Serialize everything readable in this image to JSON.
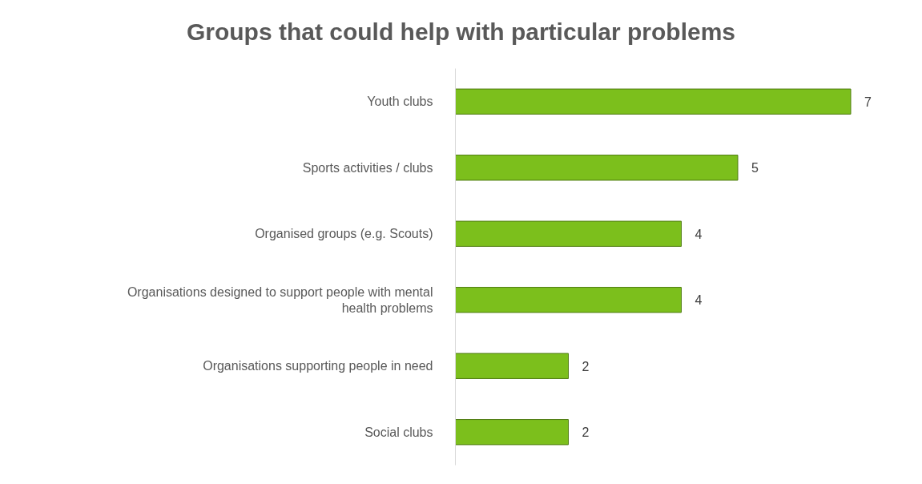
{
  "chart_data": {
    "type": "bar",
    "orientation": "horizontal",
    "title": "Groups that could help with particular problems",
    "categories": [
      "Youth clubs",
      "Sports activities / clubs",
      "Organised groups (e.g. Scouts)",
      "Organisations designed to support people with mental health problems",
      "Organisations supporting people in need",
      "Social clubs"
    ],
    "values": [
      7,
      5,
      4,
      4,
      2,
      2
    ],
    "color": "#7cbf1c",
    "data_labels": true,
    "grid": false
  }
}
